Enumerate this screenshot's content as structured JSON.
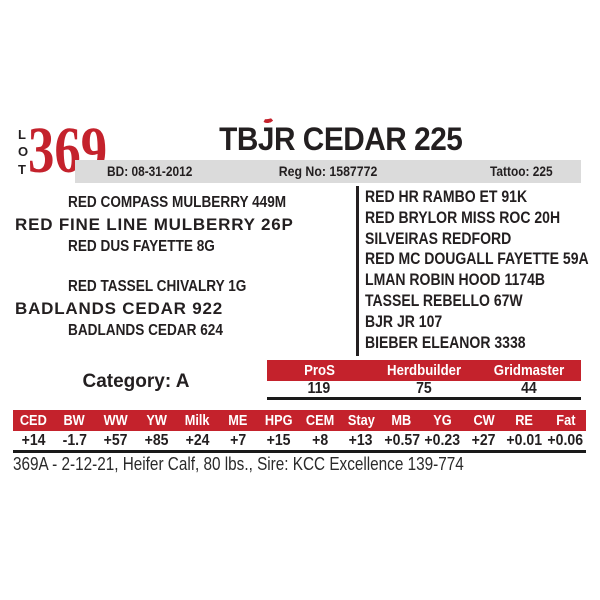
{
  "lot": {
    "label": [
      "L",
      "O",
      "T"
    ],
    "number": "369"
  },
  "header": {
    "title_pre": "TBJ",
    "title_post": "R CEDAR 225",
    "title_full": "TBJR CEDAR 225",
    "birth_date": "BD: 08-31-2012",
    "reg_no": "Reg No: 1587772",
    "tattoo": "Tattoo: 225"
  },
  "pedigree": {
    "sire": {
      "grandsire": "RED COMPASS MULBERRY 449M",
      "name": "RED FINE LINE MULBERRY 26P",
      "granddam": "RED DUS FAYETTE 8G"
    },
    "dam": {
      "grandsire": "RED TASSEL CHIVALRY 1G",
      "name": "BADLANDS CEDAR 922",
      "granddam": "BADLANDS CEDAR 624"
    },
    "ancestors": [
      "RED HR RAMBO ET 91K",
      "RED BRYLOR MISS ROC 20H",
      "SILVEIRAS REDFORD",
      "RED MC DOUGALL FAYETTE 59A",
      "LMAN ROBIN HOOD 1174B",
      "TASSEL REBELLO 67W",
      "BJR JR 107",
      "BIEBER ELEANOR 3338"
    ]
  },
  "category": "Category: A",
  "index_scores": {
    "headers": [
      "ProS",
      "Herdbuilder",
      "Gridmaster"
    ],
    "values": [
      "119",
      "75",
      "44"
    ]
  },
  "epd": {
    "headers": [
      "CED",
      "BW",
      "WW",
      "YW",
      "Milk",
      "ME",
      "HPG",
      "CEM",
      "Stay",
      "MB",
      "YG",
      "CW",
      "RE",
      "Fat"
    ],
    "values": [
      "+14",
      "-1.7",
      "+57",
      "+85",
      "+24",
      "+7",
      "+15",
      "+8",
      "+13",
      "+0.57",
      "+0.23",
      "+27",
      "+0.01",
      "+0.06"
    ]
  },
  "footer": {
    "text": "369A - 2-12-21, Heifer Calf, 80 lbs., Sire: KCC Excellence 139-774"
  },
  "colors": {
    "red": "#c4222c",
    "gray_bar": "#dbdbdb",
    "text": "#231f20"
  }
}
